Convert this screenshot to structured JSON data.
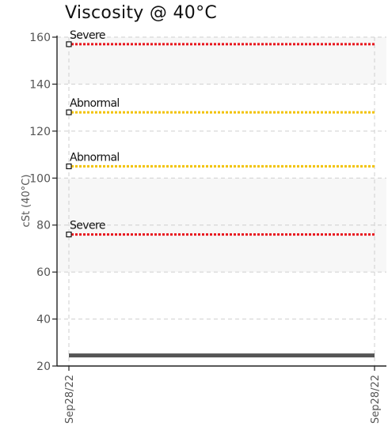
{
  "chart_data": {
    "type": "line",
    "title": "Viscosity @ 40°C",
    "ylabel": "cSt (40°C)",
    "xlabel": "",
    "ylim": [
      20,
      160
    ],
    "yticks": [
      20,
      40,
      60,
      80,
      100,
      120,
      140,
      160
    ],
    "x_labels": [
      "Sep28/22",
      "Sep28/22"
    ],
    "grid": true,
    "bands": [
      {
        "from": 20,
        "to": 60,
        "color": "#ffffff"
      },
      {
        "from": 60,
        "to": 100,
        "color": "#f7f7f7"
      },
      {
        "from": 100,
        "to": 140,
        "color": "#ffffff"
      },
      {
        "from": 140,
        "to": 160,
        "color": "#f7f7f7"
      }
    ],
    "thresholds": [
      {
        "label": "Severe",
        "value": 157,
        "color": "#e8141c"
      },
      {
        "label": "Abnormal",
        "value": 128,
        "color": "#f2c200"
      },
      {
        "label": "Abnormal",
        "value": 105,
        "color": "#f2c200"
      },
      {
        "label": "Severe",
        "value": 76,
        "color": "#e8141c"
      }
    ],
    "series": [
      {
        "values": [
          24.5,
          24.5
        ],
        "color": "#555555"
      }
    ]
  }
}
